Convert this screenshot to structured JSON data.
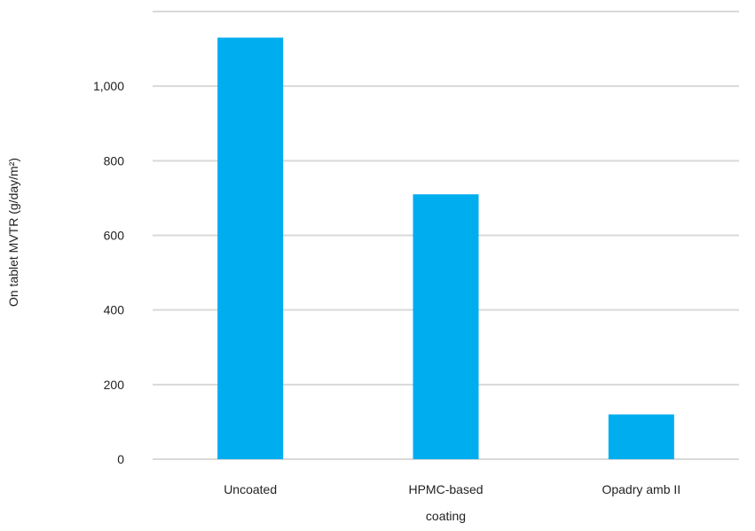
{
  "chart_data": {
    "type": "bar",
    "title": "",
    "xlabel": "",
    "ylabel": "On tablet MVTR (g/day/m²)",
    "categories": [
      [
        "Uncoated"
      ],
      [
        "HPMC-based",
        "coating"
      ],
      [
        "Opadry amb II"
      ]
    ],
    "values": [
      1130,
      710,
      120
    ],
    "ylim": [
      0,
      1200
    ],
    "yticks": [
      0,
      200,
      400,
      600,
      800,
      1000
    ],
    "ytick_labels": [
      "0",
      "200",
      "400",
      "600",
      "800",
      "1,000"
    ],
    "grid": true,
    "legend": "none",
    "bar_color": "#00adef",
    "grid_color": "#d9d9d9"
  }
}
